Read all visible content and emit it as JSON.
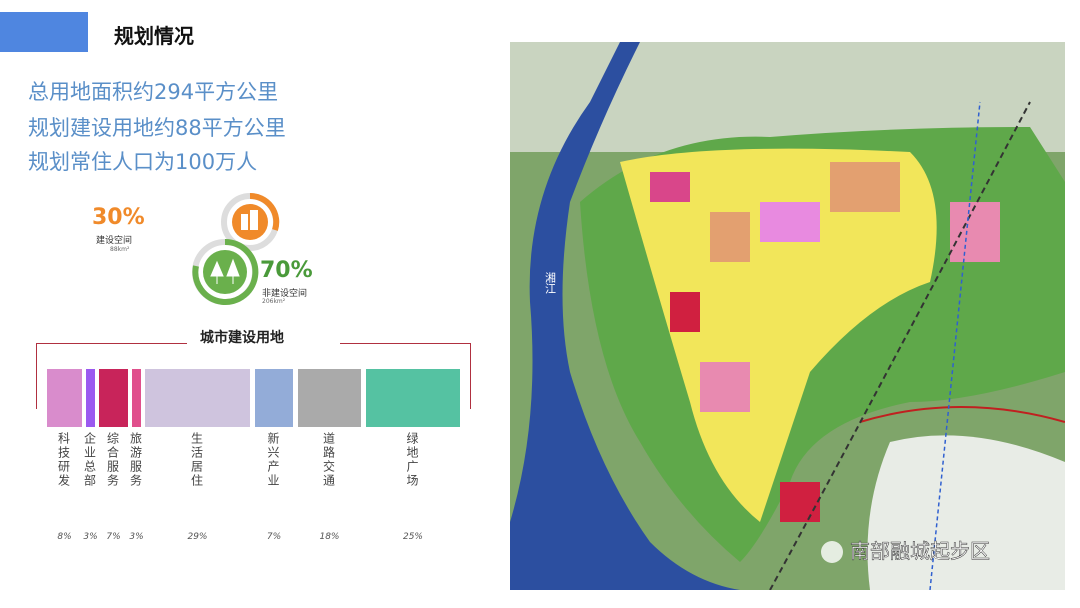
{
  "header": {
    "title": "规划情况"
  },
  "stats": [
    "总用地面积约294平方公里",
    "规划建设用地约88平方公里",
    "规划常住人口为100万人"
  ],
  "space": [
    {
      "percent": "30%",
      "label": "建设空间",
      "area": "88km²"
    },
    {
      "percent": "70%",
      "label": "非建设空间",
      "area": "206km²"
    }
  ],
  "land_use": {
    "title": "城市建设用地",
    "segments": [
      {
        "label": "科技研发",
        "percent": "8%",
        "color": "#d98ccc"
      },
      {
        "label": "企业总部",
        "percent": "3%",
        "color": "#9b59f0"
      },
      {
        "label": "综合服务",
        "percent": "7%",
        "color": "#c8245a"
      },
      {
        "label": "旅游服务",
        "percent": "3%",
        "color": "#e04f8c"
      },
      {
        "label": "生活居住",
        "percent": "29%",
        "color": "#cfc4de"
      },
      {
        "label": "新兴产业",
        "percent": "7%",
        "color": "#93acd8"
      },
      {
        "label": "道路交通",
        "percent": "18%",
        "color": "#aaaaaa"
      },
      {
        "label": "绿地广场",
        "percent": "25%",
        "color": "#55c2a2"
      }
    ]
  },
  "map": {
    "river": "湘江",
    "watermark": "南部融城起步区"
  }
}
